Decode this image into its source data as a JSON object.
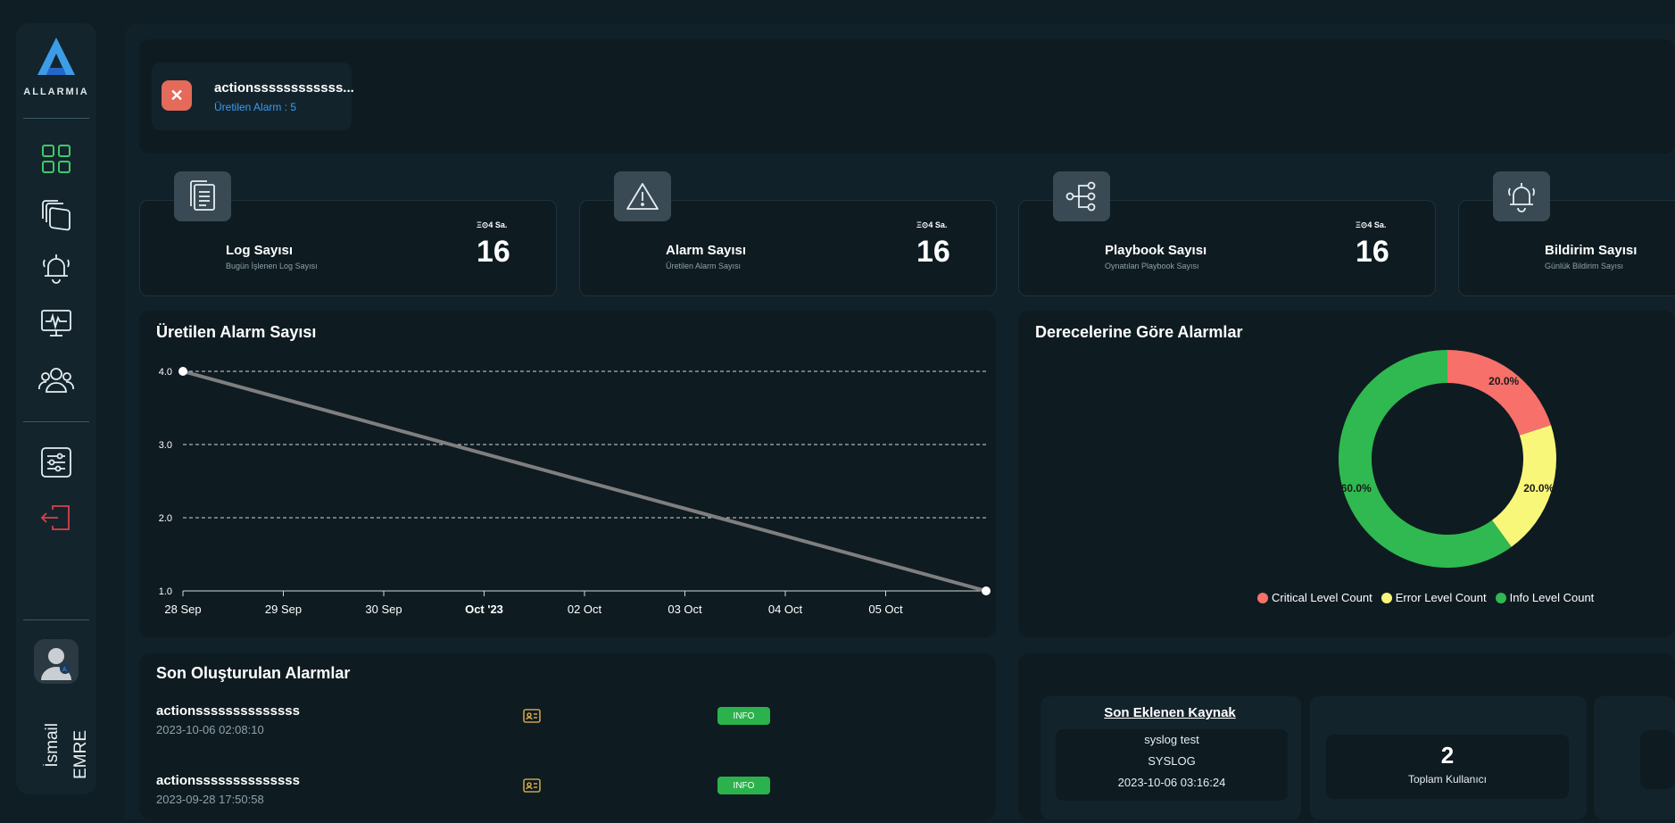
{
  "sidebar": {
    "logo_text": "ALLARMIA",
    "nav": [
      {
        "name": "dashboard",
        "icon": "grid-icon",
        "color": "#3ecb6a"
      },
      {
        "name": "sources",
        "icon": "layers-icon",
        "color": "#e6eef2"
      },
      {
        "name": "alarms",
        "icon": "bell-icon",
        "color": "#e6eef2"
      },
      {
        "name": "monitoring",
        "icon": "monitor-icon",
        "color": "#e6eef2"
      },
      {
        "name": "users",
        "icon": "users-icon",
        "color": "#e6eef2"
      },
      {
        "name": "settings",
        "icon": "sliders-icon",
        "color": "#e6eef2"
      },
      {
        "name": "logout",
        "icon": "logout-icon",
        "color": "#d9424a"
      }
    ],
    "user": {
      "first_name": "İsmail",
      "last_name": "EMRE"
    }
  },
  "notification": {
    "title": "actionssssssssssss...",
    "subtitle": "Üretilen Alarm : 5"
  },
  "stats": [
    {
      "title": "Log Sayısı",
      "subtitle": "Bugün İşlenen Log Sayısı",
      "period": "Ξ⊙4 Sa.",
      "value": "16",
      "icon": "document-icon"
    },
    {
      "title": "Alarm Sayısı",
      "subtitle": "Üretilen Alarm Sayısı",
      "period": "Ξ⊙4 Sa.",
      "value": "16",
      "icon": "warning-icon"
    },
    {
      "title": "Playbook Sayısı",
      "subtitle": "Oynatılan Playbook Sayısı",
      "period": "Ξ⊙4 Sa.",
      "value": "16",
      "icon": "workflow-icon"
    },
    {
      "title": "Bildirim Sayısı",
      "subtitle": "Günlük Bildirim Sayısı",
      "icon": "bell-icon"
    }
  ],
  "line_chart_title": "Üretilen Alarm Sayısı",
  "donut_chart_title": "Derecelerine Göre Alarmlar",
  "chart_data": [
    {
      "type": "line",
      "title": "Üretilen Alarm Sayısı",
      "x_tick_labels": [
        "28 Sep",
        "29 Sep",
        "30 Sep",
        "Oct '23",
        "02 Oct",
        "03 Oct",
        "04 Oct",
        "05 Oct"
      ],
      "y_tick_labels": [
        "1.0",
        "2.0",
        "3.0",
        "4.0"
      ],
      "ylim": [
        1,
        4
      ],
      "grid": true,
      "series": [
        {
          "x": [
            "2023-09-28",
            "2023-10-06"
          ],
          "values": [
            4,
            1
          ],
          "color": "#7f7f7f"
        }
      ]
    },
    {
      "type": "pie",
      "title": "Derecelerine Göre Alarmlar",
      "donut": true,
      "legend_position": "bottom",
      "slices": [
        {
          "label": "Critical Level Count",
          "value": 20.0,
          "value_label": "20.0%",
          "color": "#f7706a"
        },
        {
          "label": "Error Level Count",
          "value": 20.0,
          "value_label": "20.0%",
          "color": "#f9f77a"
        },
        {
          "label": "Info Level Count",
          "value": 60.0,
          "value_label": "60.0%",
          "color": "#2fb950"
        }
      ]
    }
  ],
  "recent_alarms": {
    "title": "Son Oluşturulan Alarmlar",
    "rows": [
      {
        "name": "actionssssssssssssss",
        "date": "2023-10-06 02:08:10",
        "level": "INFO"
      },
      {
        "name": "actionssssssssssssss",
        "date": "2023-09-28 17:50:58",
        "level": "INFO"
      }
    ]
  },
  "last_source": {
    "title": "Son Eklenen Kaynak",
    "name": "syslog test",
    "type": "SYSLOG",
    "date": "2023-10-06 03:16:24"
  },
  "users_summary": {
    "value": "2",
    "label": "Toplam Kullanıcı"
  }
}
